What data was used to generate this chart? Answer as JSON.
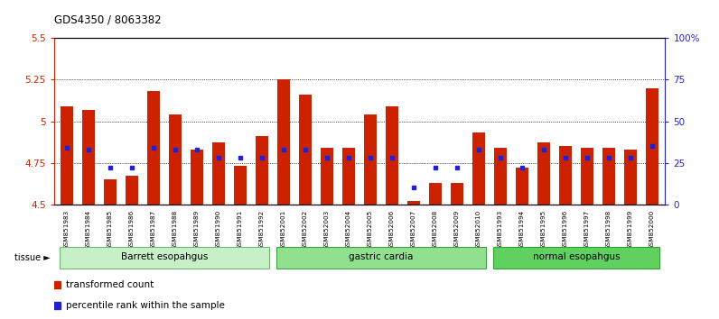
{
  "title": "GDS4350 / 8063382",
  "samples": [
    "GSM851983",
    "GSM851984",
    "GSM851985",
    "GSM851986",
    "GSM851987",
    "GSM851988",
    "GSM851989",
    "GSM851990",
    "GSM851991",
    "GSM851992",
    "GSM852001",
    "GSM852002",
    "GSM852003",
    "GSM852004",
    "GSM852005",
    "GSM852006",
    "GSM852007",
    "GSM852008",
    "GSM852009",
    "GSM852010",
    "GSM851993",
    "GSM851994",
    "GSM851995",
    "GSM851996",
    "GSM851997",
    "GSM851998",
    "GSM851999",
    "GSM852000"
  ],
  "red_values": [
    5.09,
    5.07,
    4.65,
    4.67,
    5.18,
    5.04,
    4.83,
    4.87,
    4.73,
    4.91,
    5.25,
    5.16,
    4.84,
    4.84,
    5.04,
    5.09,
    4.52,
    4.63,
    4.63,
    4.93,
    4.84,
    4.72,
    4.87,
    4.85,
    4.84,
    4.84,
    4.83,
    5.2
  ],
  "blue_percentiles": [
    34,
    33,
    22,
    22,
    34,
    33,
    33,
    28,
    28,
    28,
    33,
    33,
    28,
    28,
    28,
    28,
    10,
    22,
    22,
    33,
    28,
    22,
    33,
    28,
    28,
    28,
    28,
    35
  ],
  "groups": [
    {
      "label": "Barrett esopahgus",
      "start": 0,
      "end": 10,
      "color": "#c8f0c8",
      "edge": "#70b870"
    },
    {
      "label": "gastric cardia",
      "start": 10,
      "end": 20,
      "color": "#90e090",
      "edge": "#40a040"
    },
    {
      "label": "normal esopahgus",
      "start": 20,
      "end": 28,
      "color": "#60d060",
      "edge": "#30a030"
    }
  ],
  "y_min": 4.5,
  "y_max": 5.5,
  "y_ticks": [
    4.5,
    4.75,
    5.0,
    5.25,
    5.5
  ],
  "y_tick_labels": [
    "4.5",
    "4.75",
    "5",
    "5.25",
    "5.5"
  ],
  "right_y_ticks": [
    0,
    25,
    50,
    75,
    100
  ],
  "right_y_tick_labels": [
    "0",
    "25",
    "50",
    "75",
    "100%"
  ],
  "bar_color": "#cc2200",
  "dot_color": "#2222cc",
  "bar_width": 0.55,
  "bg_color": "#ffffff",
  "grid_color": "#000000",
  "legend_red": "transformed count",
  "legend_blue": "percentile rank within the sample",
  "tissue_label": "tissue"
}
